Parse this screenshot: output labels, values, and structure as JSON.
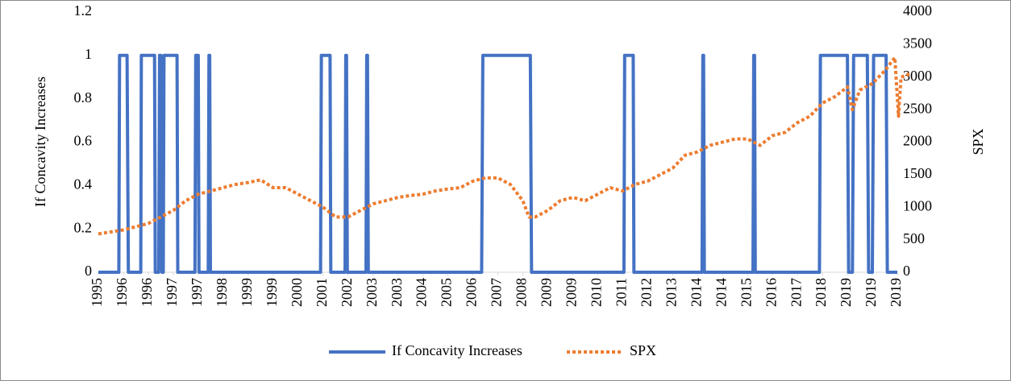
{
  "chart_data": {
    "type": "line",
    "y_label": "If Concavity Increases",
    "y2_label": "SPX",
    "xlim": [
      0,
      32
    ],
    "xticks": [
      {
        "value": 0,
        "label": "1995"
      },
      {
        "value": 1,
        "label": "1996"
      },
      {
        "value": 2,
        "label": "1996"
      },
      {
        "value": 3,
        "label": "1997"
      },
      {
        "value": 4,
        "label": "1997"
      },
      {
        "value": 5,
        "label": "1998"
      },
      {
        "value": 6,
        "label": "1999"
      },
      {
        "value": 7,
        "label": "1999"
      },
      {
        "value": 8,
        "label": "2000"
      },
      {
        "value": 9,
        "label": "2001"
      },
      {
        "value": 10,
        "label": "2002"
      },
      {
        "value": 11,
        "label": "2003"
      },
      {
        "value": 12,
        "label": "2003"
      },
      {
        "value": 13,
        "label": "2004"
      },
      {
        "value": 14,
        "label": "2005"
      },
      {
        "value": 15,
        "label": "2006"
      },
      {
        "value": 16,
        "label": "2007"
      },
      {
        "value": 17,
        "label": "2008"
      },
      {
        "value": 18,
        "label": "2009"
      },
      {
        "value": 19,
        "label": "2009"
      },
      {
        "value": 20,
        "label": "2010"
      },
      {
        "value": 21,
        "label": "2011"
      },
      {
        "value": 22,
        "label": "2012"
      },
      {
        "value": 23,
        "label": "2013"
      },
      {
        "value": 24,
        "label": "2014"
      },
      {
        "value": 25,
        "label": "2014"
      },
      {
        "value": 26,
        "label": "2015"
      },
      {
        "value": 27,
        "label": "2016"
      },
      {
        "value": 28,
        "label": "2017"
      },
      {
        "value": 29,
        "label": "2018"
      },
      {
        "value": 30,
        "label": "2019"
      },
      {
        "value": 31,
        "label": "2019"
      },
      {
        "value": 32,
        "label": "2019"
      }
    ],
    "ylim": [
      0,
      1.2
    ],
    "yticks": [
      0,
      0.2,
      0.4,
      0.6,
      0.8,
      1,
      1.2
    ],
    "y2lim": [
      0,
      4000
    ],
    "y2ticks": [
      0,
      500,
      1000,
      1500,
      2000,
      2500,
      3000,
      3500,
      4000
    ],
    "series": [
      {
        "name": "If Concavity Increases",
        "color": "#4472c4",
        "x": [
          0,
          0.82,
          0.85,
          1.15,
          1.2,
          1.7,
          1.72,
          2.25,
          2.28,
          2.42,
          2.45,
          2.5,
          2.55,
          2.6,
          2.63,
          3.15,
          3.18,
          3.87,
          3.9,
          4.0,
          4.03,
          4.4,
          4.43,
          4.46,
          4.49,
          8.9,
          8.93,
          9.28,
          9.31,
          9.88,
          9.91,
          9.94,
          9.97,
          10.72,
          10.75,
          10.78,
          10.81,
          15.35,
          15.4,
          17.3,
          17.35,
          21.05,
          21.08,
          21.42,
          21.45,
          24.18,
          24.21,
          24.24,
          24.27,
          26.22,
          26.25,
          26.28,
          26.31,
          28.88,
          28.92,
          30.0,
          30.05,
          30.2,
          30.25,
          30.8,
          30.85,
          31.0,
          31.05,
          31.55,
          31.6,
          32.0
        ],
        "values": [
          0,
          0,
          1,
          1,
          0,
          0,
          1,
          1,
          0,
          0,
          1,
          1,
          0,
          0,
          1,
          1,
          0,
          0,
          1,
          1,
          0,
          0,
          1,
          1,
          0,
          0,
          1,
          1,
          0,
          0,
          1,
          1,
          0,
          0,
          1,
          1,
          0,
          0,
          1,
          1,
          0,
          0,
          1,
          1,
          0,
          0,
          1,
          1,
          0,
          0,
          1,
          1,
          0,
          0,
          1,
          1,
          0,
          0,
          1,
          1,
          0,
          0,
          1,
          1,
          0,
          0
        ]
      },
      {
        "name": "SPX",
        "color": "#ed7d31",
        "axis": "y2",
        "x": [
          0,
          0.5,
          1,
          1.5,
          2,
          2.5,
          3,
          3.5,
          4,
          4.5,
          5,
          5.5,
          6,
          6.5,
          7,
          7.5,
          8,
          8.5,
          9,
          9.5,
          10,
          10.5,
          11,
          11.5,
          12,
          12.5,
          13,
          13.5,
          14,
          14.5,
          15,
          15.5,
          16,
          16.5,
          17,
          17.25,
          17.5,
          18,
          18.5,
          19,
          19.5,
          20,
          20.5,
          21,
          21.5,
          22,
          22.5,
          23,
          23.5,
          24,
          24.5,
          25,
          25.5,
          26,
          26.5,
          27,
          27.5,
          28,
          28.5,
          29,
          29.5,
          30,
          30.2,
          30.5,
          31,
          31.5,
          31.9,
          32.05,
          32.15,
          32.5
        ],
        "values": [
          590,
          620,
          650,
          700,
          750,
          850,
          950,
          1100,
          1200,
          1250,
          1300,
          1350,
          1380,
          1420,
          1300,
          1300,
          1200,
          1100,
          1000,
          850,
          850,
          950,
          1050,
          1100,
          1150,
          1180,
          1200,
          1250,
          1280,
          1300,
          1400,
          1450,
          1450,
          1350,
          1100,
          850,
          850,
          950,
          1100,
          1150,
          1100,
          1200,
          1300,
          1250,
          1350,
          1400,
          1500,
          1600,
          1800,
          1850,
          1950,
          2000,
          2050,
          2050,
          1950,
          2100,
          2150,
          2300,
          2400,
          2600,
          2700,
          2850,
          2500,
          2800,
          2900,
          3100,
          3300,
          2400,
          3000,
          3050
        ]
      }
    ]
  }
}
